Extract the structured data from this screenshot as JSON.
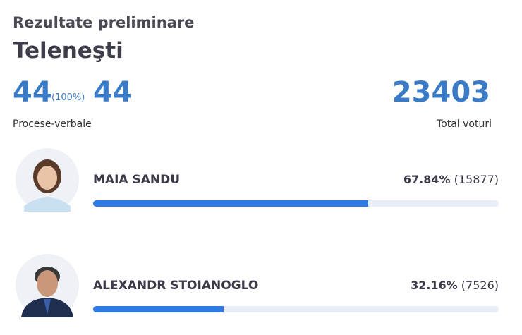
{
  "header": {
    "title": "Rezultate preliminare",
    "region": "Teleneşti"
  },
  "stats": {
    "processed": 44,
    "processed_share": {
      "value": 100,
      "label": "(100%)"
    },
    "total_reports": 44,
    "reports_label": "Procese-verbale",
    "total_votes": 23403,
    "votes_label": "Total voturi"
  },
  "candidates": [
    {
      "name": "MAIA SANDU",
      "percent": {
        "value": 67.84,
        "label": "67.84%"
      },
      "votes": {
        "value": 15877,
        "label": "(15877)"
      }
    },
    {
      "name": "ALEXANDR STOIANOGLO",
      "percent": {
        "value": 32.16,
        "label": "32.16%"
      },
      "votes": {
        "value": 7526,
        "label": "(7526)"
      }
    }
  ]
}
